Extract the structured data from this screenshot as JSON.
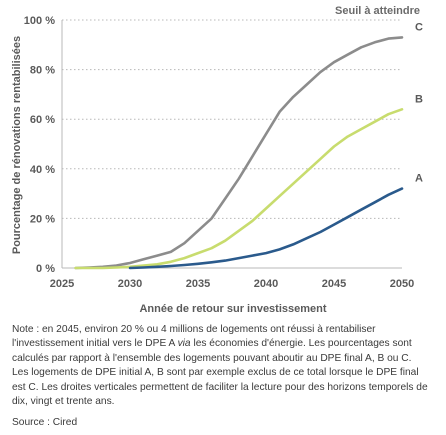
{
  "chart_data": {
    "type": "line",
    "legend_title": "Seuil à atteindre",
    "xlabel": "Année de retour sur investissement",
    "ylabel": "Pourcentage de rénovations rentabilisées",
    "xlim": [
      2025,
      2050
    ],
    "ylim": [
      0,
      100
    ],
    "xticks": [
      2025,
      2030,
      2035,
      2040,
      2045,
      2050
    ],
    "yticks": [
      0,
      20,
      40,
      60,
      80,
      100
    ],
    "ytick_labels": [
      "0 %",
      "20 %",
      "40 %",
      "60 %",
      "80 %",
      "100 %"
    ],
    "grid": "horizontal-dotted",
    "series": [
      {
        "name": "C",
        "color": "#8c8c8c",
        "x": [
          2026,
          2027,
          2028,
          2029,
          2030,
          2031,
          2032,
          2033,
          2034,
          2035,
          2036,
          2037,
          2038,
          2039,
          2040,
          2041,
          2042,
          2043,
          2044,
          2045,
          2046,
          2047,
          2048,
          2049,
          2050
        ],
        "y": [
          0,
          0.2,
          0.5,
          1,
          2,
          3.5,
          5,
          6.5,
          10,
          15,
          20,
          28,
          36,
          45,
          54,
          63,
          69,
          74,
          79,
          83,
          86,
          89,
          91,
          92.5,
          93
        ]
      },
      {
        "name": "B",
        "color": "#c8dc6e",
        "x": [
          2026,
          2027,
          2028,
          2029,
          2030,
          2031,
          2032,
          2033,
          2034,
          2035,
          2036,
          2037,
          2038,
          2039,
          2040,
          2041,
          2042,
          2043,
          2044,
          2045,
          2046,
          2047,
          2048,
          2049,
          2050
        ],
        "y": [
          0,
          0,
          0,
          0.2,
          0.5,
          1,
          1.5,
          2.5,
          4,
          6,
          8,
          11,
          15,
          19,
          24,
          29,
          34,
          39,
          44,
          49,
          53,
          56,
          59,
          62,
          64
        ]
      },
      {
        "name": "A",
        "color": "#2a5a8c",
        "x": [
          2030,
          2031,
          2032,
          2033,
          2034,
          2035,
          2036,
          2037,
          2038,
          2039,
          2040,
          2041,
          2042,
          2043,
          2044,
          2045,
          2046,
          2047,
          2048,
          2049,
          2050
        ],
        "y": [
          0,
          0.2,
          0.5,
          0.8,
          1.2,
          1.7,
          2.3,
          3,
          4,
          5,
          6,
          7.5,
          9.5,
          12,
          14.5,
          17.5,
          20.5,
          23.5,
          26.5,
          29.5,
          32
        ]
      }
    ]
  },
  "note": {
    "before_italic": "Note : en 2045, environ 20 % ou 4 millions de logements ont réussi à rentabiliser l'investissement initial vers le DPE A ",
    "italic": "via",
    "after_italic": " les économies d'énergie. Les pourcentages sont calculés par rapport à l'ensemble des logements pouvant aboutir au DPE final A, B ou C. Les logements de DPE initial A, B sont par exemple exclus de ce total lorsque le DPE final est C. Les droites verticales permettent de faciliter la lecture pour des horizons temporels de dix, vingt et trente ans."
  },
  "source": "Source : Cired"
}
